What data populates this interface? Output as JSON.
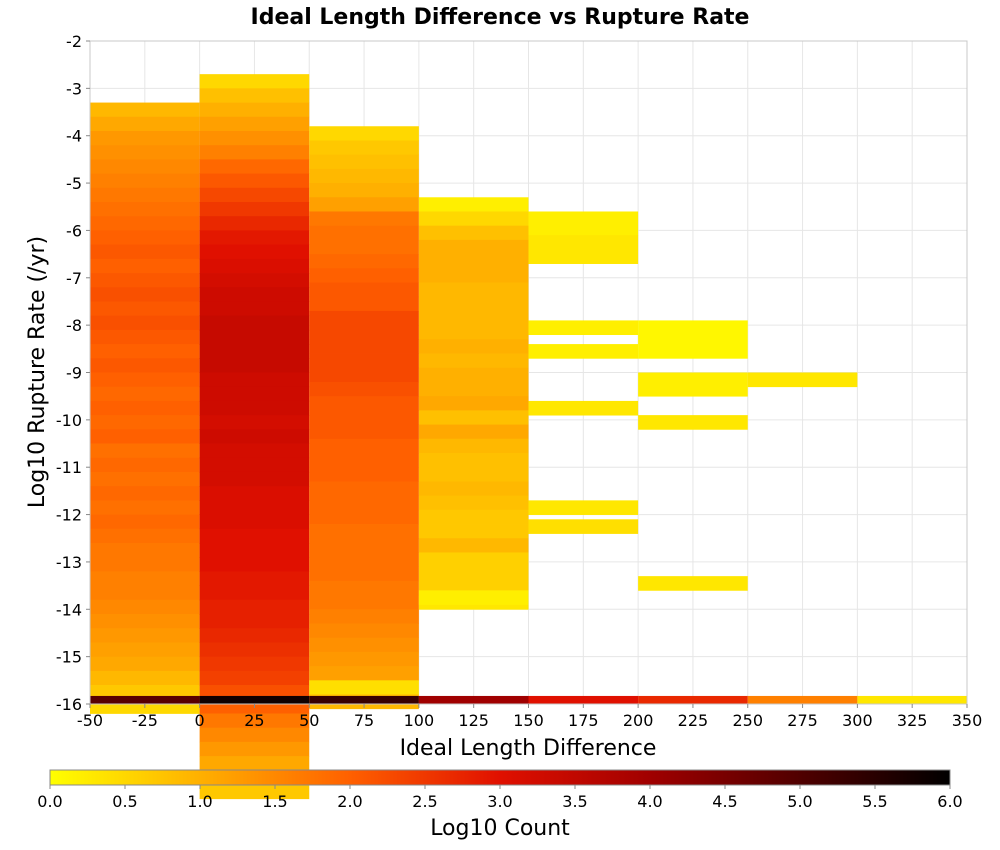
{
  "chart_data": {
    "type": "heatmap",
    "title": "Ideal Length Difference vs Rupture Rate",
    "xlabel": "Ideal Length Difference",
    "ylabel": "Log10 Rupture Rate (/yr)",
    "colorbar_label": "Log10 Count",
    "xlim": [
      -50,
      350
    ],
    "ylim": [
      -16,
      -2
    ],
    "x_ticks": [
      -50,
      -25,
      0,
      25,
      50,
      75,
      100,
      125,
      150,
      175,
      200,
      225,
      250,
      275,
      300,
      325,
      350
    ],
    "x_tick_labels": [
      "-50",
      "-25",
      "0",
      "25",
      "50",
      "75",
      "100",
      "125",
      "150",
      "175",
      "200",
      "225",
      "250",
      "275",
      "300",
      "325",
      "350"
    ],
    "y_ticks": [
      -2,
      -3,
      -4,
      -5,
      -6,
      -7,
      -8,
      -9,
      -10,
      -11,
      -12,
      -13,
      -14,
      -15,
      -16
    ],
    "y_tick_labels": [
      "-2",
      "-3",
      "-4",
      "-5",
      "-6",
      "-7",
      "-8",
      "-9",
      "-10",
      "-11",
      "-12",
      "-13",
      "-14",
      "-15",
      "-16"
    ],
    "colorbar_range": [
      0,
      6
    ],
    "colorbar_ticks": [
      0,
      0.5,
      1,
      1.5,
      2,
      2.5,
      3,
      3.5,
      4,
      4.5,
      5,
      5.5,
      6
    ],
    "colorbar_tick_labels": [
      "0.0",
      "0.5",
      "1.0",
      "1.5",
      "2.0",
      "2.5",
      "3.0",
      "3.5",
      "4.0",
      "4.5",
      "5.0",
      "5.5",
      "6.0"
    ],
    "colormap": [
      "#ffff00",
      "#ffb000",
      "#ff6000",
      "#e01000",
      "#a00000",
      "#500000",
      "#000000"
    ],
    "y_bin_width": 0.3,
    "grid": true,
    "columns": [
      {
        "x0": -50,
        "x1": 0,
        "top": -3.3,
        "values": [
          0.9,
          1.1,
          1.3,
          1.4,
          1.5,
          1.6,
          1.7,
          1.8,
          1.9,
          2.0,
          2.1,
          2.0,
          2.1,
          2.2,
          2.1,
          2.2,
          2.1,
          2.0,
          2.1,
          2.0,
          1.9,
          2.0,
          1.9,
          2.0,
          1.8,
          1.9,
          1.8,
          1.9,
          1.8,
          1.9,
          1.8,
          1.7,
          1.7,
          1.6,
          1.6,
          1.5,
          1.4,
          1.3,
          1.2,
          1.1,
          0.9,
          0.7,
          0.5
        ],
        "floor": 4.9
      },
      {
        "x0": 0,
        "x1": 50,
        "top": -2.7,
        "values": [
          0.5,
          0.8,
          1.0,
          1.2,
          1.4,
          1.6,
          1.9,
          2.1,
          2.3,
          2.5,
          2.7,
          2.9,
          3.0,
          3.1,
          3.2,
          3.3,
          3.3,
          3.4,
          3.4,
          3.4,
          3.4,
          3.3,
          3.3,
          3.3,
          3.2,
          3.3,
          3.2,
          3.2,
          3.2,
          3.1,
          3.1,
          3.1,
          3.0,
          3.0,
          3.0,
          2.9,
          2.9,
          2.8,
          2.8,
          2.7,
          2.6,
          2.5,
          2.4,
          2.2,
          2.0,
          1.7,
          1.5,
          1.3,
          1.1,
          0.9,
          0.7
        ],
        "floor": 5.8
      },
      {
        "x0": 50,
        "x1": 100,
        "top": -3.8,
        "values": [
          0.5,
          0.7,
          0.8,
          0.9,
          1.0,
          1.2,
          1.7,
          1.8,
          1.8,
          1.9,
          2.0,
          2.1,
          2.1,
          2.3,
          2.3,
          2.3,
          2.3,
          2.3,
          2.2,
          2.1,
          2.1,
          2.1,
          2.0,
          2.0,
          2.0,
          1.9,
          1.9,
          1.9,
          1.8,
          1.8,
          1.8,
          1.8,
          1.7,
          1.7,
          1.6,
          1.5,
          1.4,
          1.3,
          1.2,
          0.4,
          0.9
        ],
        "floor": 5.3
      },
      {
        "x0": 100,
        "x1": 150,
        "top": -5.3,
        "values": [
          0.2,
          0.5,
          0.8,
          1.0,
          1.0,
          1.0,
          0.9,
          0.9,
          0.9,
          0.9,
          1.0,
          0.9,
          1.0,
          1.0,
          1.1,
          0.8,
          1.1,
          0.9,
          0.8,
          0.8,
          0.9,
          0.8,
          0.7,
          0.7,
          0.9,
          0.6,
          0.6,
          0.6,
          0.3
        ],
        "floor": 4.0,
        "extra": [
          {
            "y0": -13.9,
            "y1": -13.6,
            "value": 0.2
          }
        ]
      },
      {
        "x0": 150,
        "x1": 200,
        "segments": [
          {
            "y0": -6.1,
            "y1": -5.6,
            "value": 0.2
          },
          {
            "y0": -6.7,
            "y1": -6.1,
            "value": 0.3
          },
          {
            "y0": -8.2,
            "y1": -7.9,
            "value": 0.2
          },
          {
            "y0": -8.7,
            "y1": -8.4,
            "value": 0.2
          },
          {
            "y0": -9.9,
            "y1": -9.6,
            "value": 0.3
          },
          {
            "y0": -12.0,
            "y1": -11.7,
            "value": 0.3
          },
          {
            "y0": -12.4,
            "y1": -12.1,
            "value": 0.4
          }
        ],
        "floor": 3.0
      },
      {
        "x0": 200,
        "x1": 250,
        "segments": [
          {
            "y0": -8.7,
            "y1": -7.9,
            "value": 0.1
          },
          {
            "y0": -9.5,
            "y1": -9.0,
            "value": 0.2
          },
          {
            "y0": -10.2,
            "y1": -9.9,
            "value": 0.3
          },
          {
            "y0": -13.6,
            "y1": -13.3,
            "value": 0.3
          }
        ],
        "floor": 2.7
      },
      {
        "x0": 250,
        "x1": 300,
        "segments": [
          {
            "y0": -9.3,
            "y1": -9.0,
            "value": 0.3
          }
        ],
        "floor": 1.6
      },
      {
        "x0": 300,
        "x1": 350,
        "segments": [],
        "floor": 0.3
      }
    ],
    "floor_row": [
      -16.0,
      -15.83
    ]
  }
}
